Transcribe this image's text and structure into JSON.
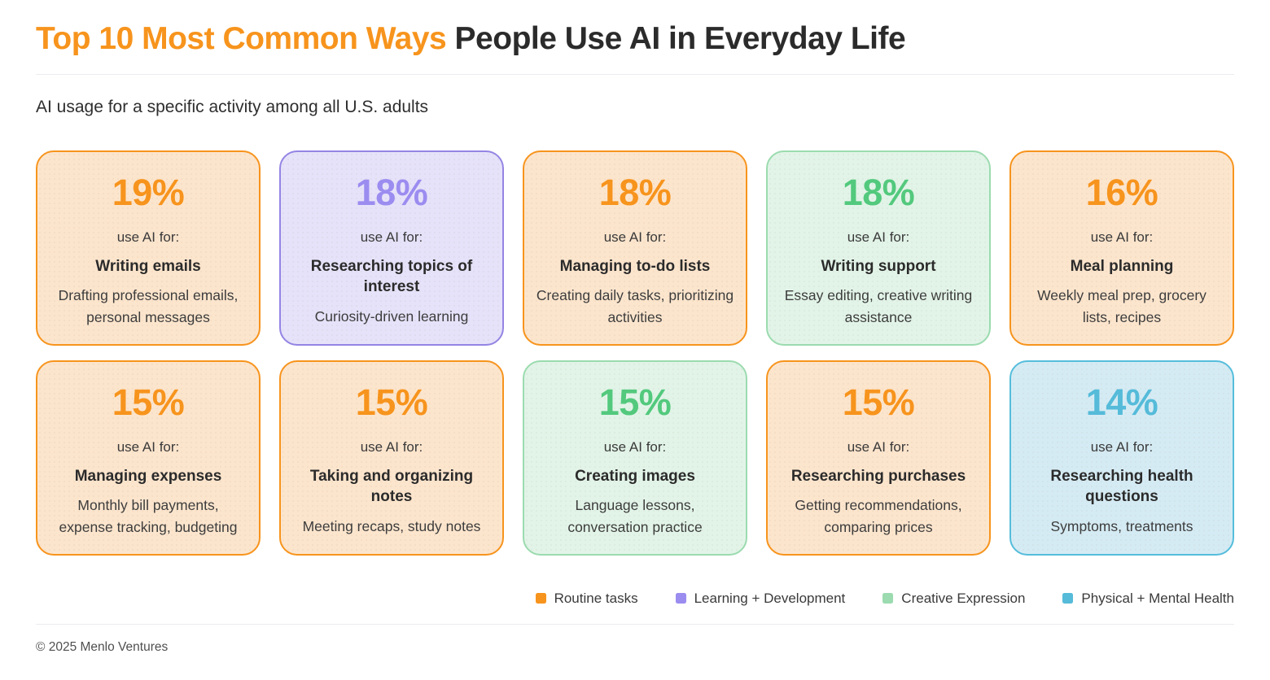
{
  "header": {
    "title_highlight": "Top 10 Most Common Ways",
    "title_rest": "People Use AI in Everyday Life",
    "subtitle": "AI usage for a specific activity among all U.S. adults"
  },
  "themes": {
    "routine": {
      "bg": "#FCE5CD",
      "border": "#F7941D",
      "accent": "#F7941D"
    },
    "learning": {
      "bg": "#E6E2F9",
      "border": "#9484E4",
      "accent": "#9B8CF0"
    },
    "creative": {
      "bg": "#E2F4E8",
      "border": "#9BDBAF",
      "accent": "#53C97D"
    },
    "health": {
      "bg": "#D5EBF4",
      "border": "#55BDDB",
      "accent": "#55BBD9"
    }
  },
  "cards": [
    {
      "pct": "19%",
      "lead": "use AI for:",
      "title": "Writing emails",
      "desc": "Drafting professional emails, personal messages",
      "category": "routine"
    },
    {
      "pct": "18%",
      "lead": "use AI for:",
      "title": "Researching topics of interest",
      "desc": "Curiosity-driven learning",
      "category": "learning"
    },
    {
      "pct": "18%",
      "lead": "use AI for:",
      "title": "Managing to-do lists",
      "desc": "Creating daily tasks, prioritizing activities",
      "category": "routine"
    },
    {
      "pct": "18%",
      "lead": "use AI for:",
      "title": "Writing support",
      "desc": "Essay editing, creative writing assistance",
      "category": "creative"
    },
    {
      "pct": "16%",
      "lead": "use AI for:",
      "title": "Meal planning",
      "desc": "Weekly meal prep, grocery lists, recipes",
      "category": "routine"
    },
    {
      "pct": "15%",
      "lead": "use AI for:",
      "title": "Managing expenses",
      "desc": "Monthly bill payments, expense tracking, budgeting",
      "category": "routine"
    },
    {
      "pct": "15%",
      "lead": "use AI for:",
      "title": "Taking and organizing notes",
      "desc": "Meeting recaps, study notes",
      "category": "routine"
    },
    {
      "pct": "15%",
      "lead": "use AI for:",
      "title": "Creating images",
      "desc": "Language lessons, conversation practice",
      "category": "creative"
    },
    {
      "pct": "15%",
      "lead": "use AI for:",
      "title": "Researching purchases",
      "desc": "Getting recommendations, comparing prices",
      "category": "routine"
    },
    {
      "pct": "14%",
      "lead": "use AI for:",
      "title": "Researching health questions",
      "desc": "Symptoms, treatments",
      "category": "health"
    }
  ],
  "legend": [
    {
      "label": "Routine tasks",
      "category": "routine",
      "color": "#F7941D"
    },
    {
      "label": "Learning + Development",
      "category": "learning",
      "color": "#9B8CF0"
    },
    {
      "label": "Creative Expression",
      "category": "creative",
      "color": "#9BDBAF"
    },
    {
      "label": "Physical + Mental Health",
      "category": "health",
      "color": "#55BBD9"
    }
  ],
  "footer": {
    "copyright": "© 2025 Menlo Ventures"
  },
  "chart_data": {
    "type": "table",
    "title": "Top 10 Most Common Ways People Use AI in Everyday Life",
    "subtitle": "AI usage for a specific activity among all U.S. adults",
    "unit": "% of U.S. adults",
    "categories": [
      "Writing emails",
      "Researching topics of interest",
      "Managing to-do lists",
      "Writing support",
      "Meal planning",
      "Managing expenses",
      "Taking and organizing notes",
      "Creating images",
      "Researching purchases",
      "Researching health questions"
    ],
    "values": [
      19,
      18,
      18,
      18,
      16,
      15,
      15,
      15,
      15,
      14
    ],
    "point_categories": [
      "Routine tasks",
      "Learning + Development",
      "Routine tasks",
      "Creative Expression",
      "Routine tasks",
      "Routine tasks",
      "Routine tasks",
      "Creative Expression",
      "Routine tasks",
      "Physical + Mental Health"
    ],
    "details": [
      "Drafting professional emails, personal messages",
      "Curiosity-driven learning",
      "Creating daily tasks, prioritizing activities",
      "Essay editing, creative writing assistance",
      "Weekly meal prep, grocery lists, recipes",
      "Monthly bill payments, expense tracking, budgeting",
      "Meeting recaps, study notes",
      "Language lessons, conversation practice",
      "Getting recommendations, comparing prices",
      "Symptoms, treatments"
    ],
    "legend_entries": [
      "Routine tasks",
      "Learning + Development",
      "Creative Expression",
      "Physical + Mental Health"
    ],
    "legend_position": "bottom-right"
  }
}
